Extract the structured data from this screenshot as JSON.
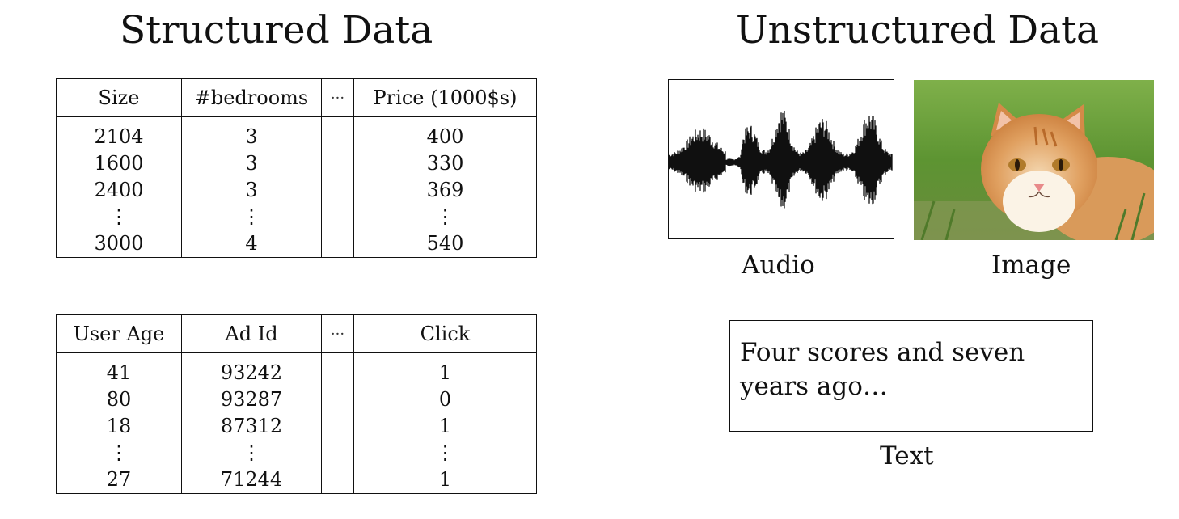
{
  "structured": {
    "title": "Structured Data",
    "housing_table": {
      "headers": [
        "Size",
        "#bedrooms",
        "···",
        "Price (1000$s)"
      ],
      "columns": [
        [
          "2104",
          "1600",
          "2400",
          "⋮",
          "3000"
        ],
        [
          "3",
          "3",
          "3",
          "⋮",
          "4"
        ],
        [
          "",
          "",
          "",
          "",
          ""
        ],
        [
          "400",
          "330",
          "369",
          "⋮",
          "540"
        ]
      ]
    },
    "ads_table": {
      "headers": [
        "User Age",
        "Ad Id",
        "···",
        "Click"
      ],
      "columns": [
        [
          "41",
          "80",
          "18",
          "⋮",
          "27"
        ],
        [
          "93242",
          "93287",
          "87312",
          "⋮",
          "71244"
        ],
        [
          "",
          "",
          "",
          "",
          ""
        ],
        [
          "1",
          "0",
          "1",
          "⋮",
          "1"
        ]
      ]
    }
  },
  "unstructured": {
    "title": "Unstructured Data",
    "audio_caption": "Audio",
    "image_caption": "Image",
    "text_body": "Four scores and seven years ago…",
    "text_caption": "Text"
  }
}
